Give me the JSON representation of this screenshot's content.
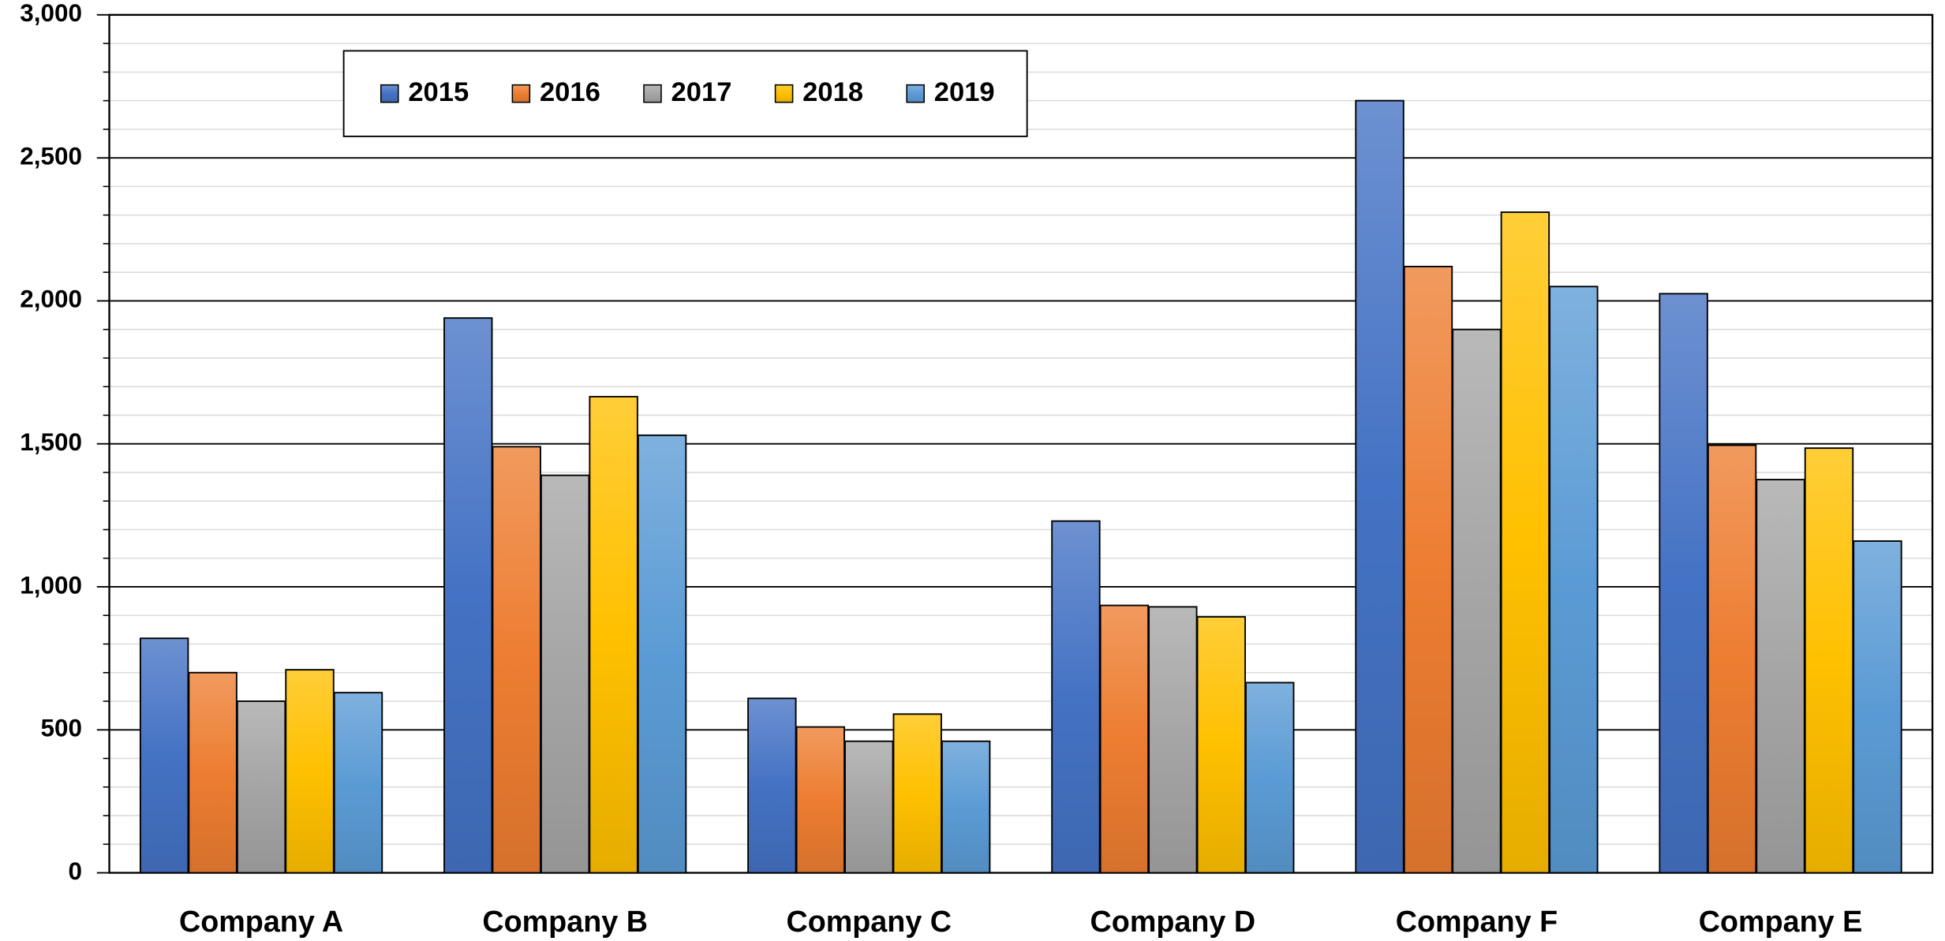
{
  "chart_data": {
    "type": "bar",
    "categories": [
      "Company A",
      "Company B",
      "Company C",
      "Company D",
      "Company F",
      "Company E"
    ],
    "series": [
      {
        "name": "2015",
        "color": "#4472c4",
        "values": [
          820,
          1940,
          610,
          1230,
          2700,
          2025
        ]
      },
      {
        "name": "2016",
        "color": "#ed7d31",
        "values": [
          700,
          1490,
          510,
          935,
          2120,
          1495
        ]
      },
      {
        "name": "2017",
        "color": "#a5a5a5",
        "values": [
          600,
          1390,
          460,
          930,
          1900,
          1375
        ]
      },
      {
        "name": "2018",
        "color": "#ffc000",
        "values": [
          710,
          1665,
          555,
          895,
          2310,
          1485
        ]
      },
      {
        "name": "2019",
        "color": "#5b9bd5",
        "values": [
          630,
          1530,
          460,
          665,
          2050,
          1160
        ]
      }
    ],
    "ylim": [
      0,
      3000
    ],
    "yticks": [
      0,
      500,
      {
        "value": 1000,
        "label": "1,000"
      },
      {
        "value": 1500,
        "label": "1,500"
      },
      {
        "value": 2000,
        "label": "2,000"
      },
      {
        "value": 2500,
        "label": "2,500"
      },
      {
        "value": 3000,
        "label": "3,000"
      }
    ],
    "yminor_ticks": [
      100,
      200,
      300,
      400,
      600,
      700,
      800,
      900,
      1100,
      1200,
      1300,
      1400,
      1600,
      1700,
      1800,
      1900,
      2100,
      2200,
      2300,
      2400,
      2600,
      2700,
      2800,
      2900
    ],
    "grid": true,
    "legend": "top-left"
  }
}
